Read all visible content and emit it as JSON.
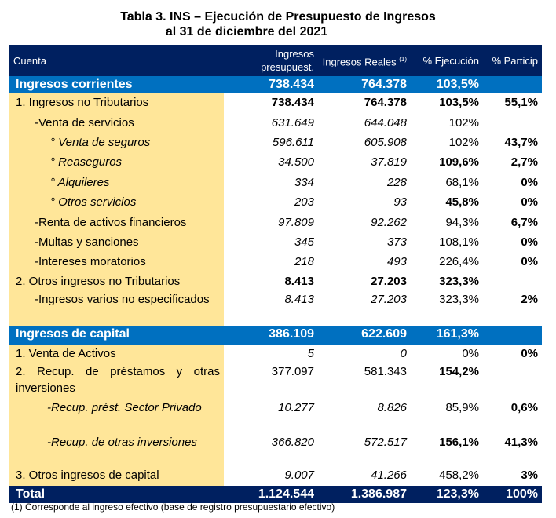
{
  "title": [
    "Tabla 3. INS – Ejecución de Presupuesto de Ingresos",
    "al 31 de diciembre del 2021"
  ],
  "table": {
    "header": [
      "Cuenta",
      "Ingresos presupuest.",
      "Ingresos Reales",
      "% Ejecución",
      "% Particip"
    ],
    "header_note": "(1)",
    "rows": [
      [
        "Ingresos corrientes",
        "738.434",
        "764.378",
        "103,5%",
        null
      ],
      [
        "1. Ingresos no Tributarios",
        "738.434",
        "764.378",
        "103,5%",
        "55,1%"
      ],
      [
        "-Venta de servicios",
        "631.649",
        "644.048",
        "102%",
        null
      ],
      [
        "° Venta de seguros",
        "596.611",
        "605.908",
        "102%",
        "43,7%"
      ],
      [
        "° Reaseguros",
        "34.500",
        "37.819",
        "109,6%",
        "2,7%"
      ],
      [
        "° Alquileres",
        "334",
        "228",
        "68,1%",
        "0%"
      ],
      [
        "° Otros servicios",
        "203",
        "93",
        "45,8%",
        "0%"
      ],
      [
        "-Renta de activos financieros",
        "97.809",
        "92.262",
        "94,3%",
        "6,7%"
      ],
      [
        "-Multas y sanciones",
        "345",
        "373",
        "108,1%",
        "0%"
      ],
      [
        "-Intereses moratorios",
        "218",
        "493",
        "226,4%",
        "0%"
      ],
      [
        "2. Otros ingresos no Tributarios",
        "8.413",
        "27.203",
        "323,3%",
        null
      ],
      [
        "-Ingresos varios no especificados",
        "8.413",
        "27.203",
        "323,3%",
        "2%"
      ],
      [
        "Ingresos de capital",
        "386.109",
        "622.609",
        "161,3%",
        null
      ],
      [
        "1. Venta de Activos",
        "5",
        "0",
        "0%",
        "0%"
      ],
      [
        "2. Recup. de préstamos y otras inversiones",
        "377.097",
        "581.343",
        "154,2%",
        null
      ],
      [
        "-Recup. prést. Sector Privado",
        "10.277",
        "8.826",
        "85,9%",
        "0,6%"
      ],
      [
        "-Recup. de otras inversiones",
        "366.820",
        "572.517",
        "156,1%",
        "41,3%"
      ],
      [
        "3. Otros ingresos de capital",
        "9.007",
        "41.266",
        "458,2%",
        "3%"
      ],
      [
        "Total",
        "1.124.544",
        "1.386.987",
        "123,3%",
        "100%"
      ]
    ]
  },
  "footnote": "(1)  Corresponde al ingreso efectivo (base de registro presupuestario efectivo)"
}
